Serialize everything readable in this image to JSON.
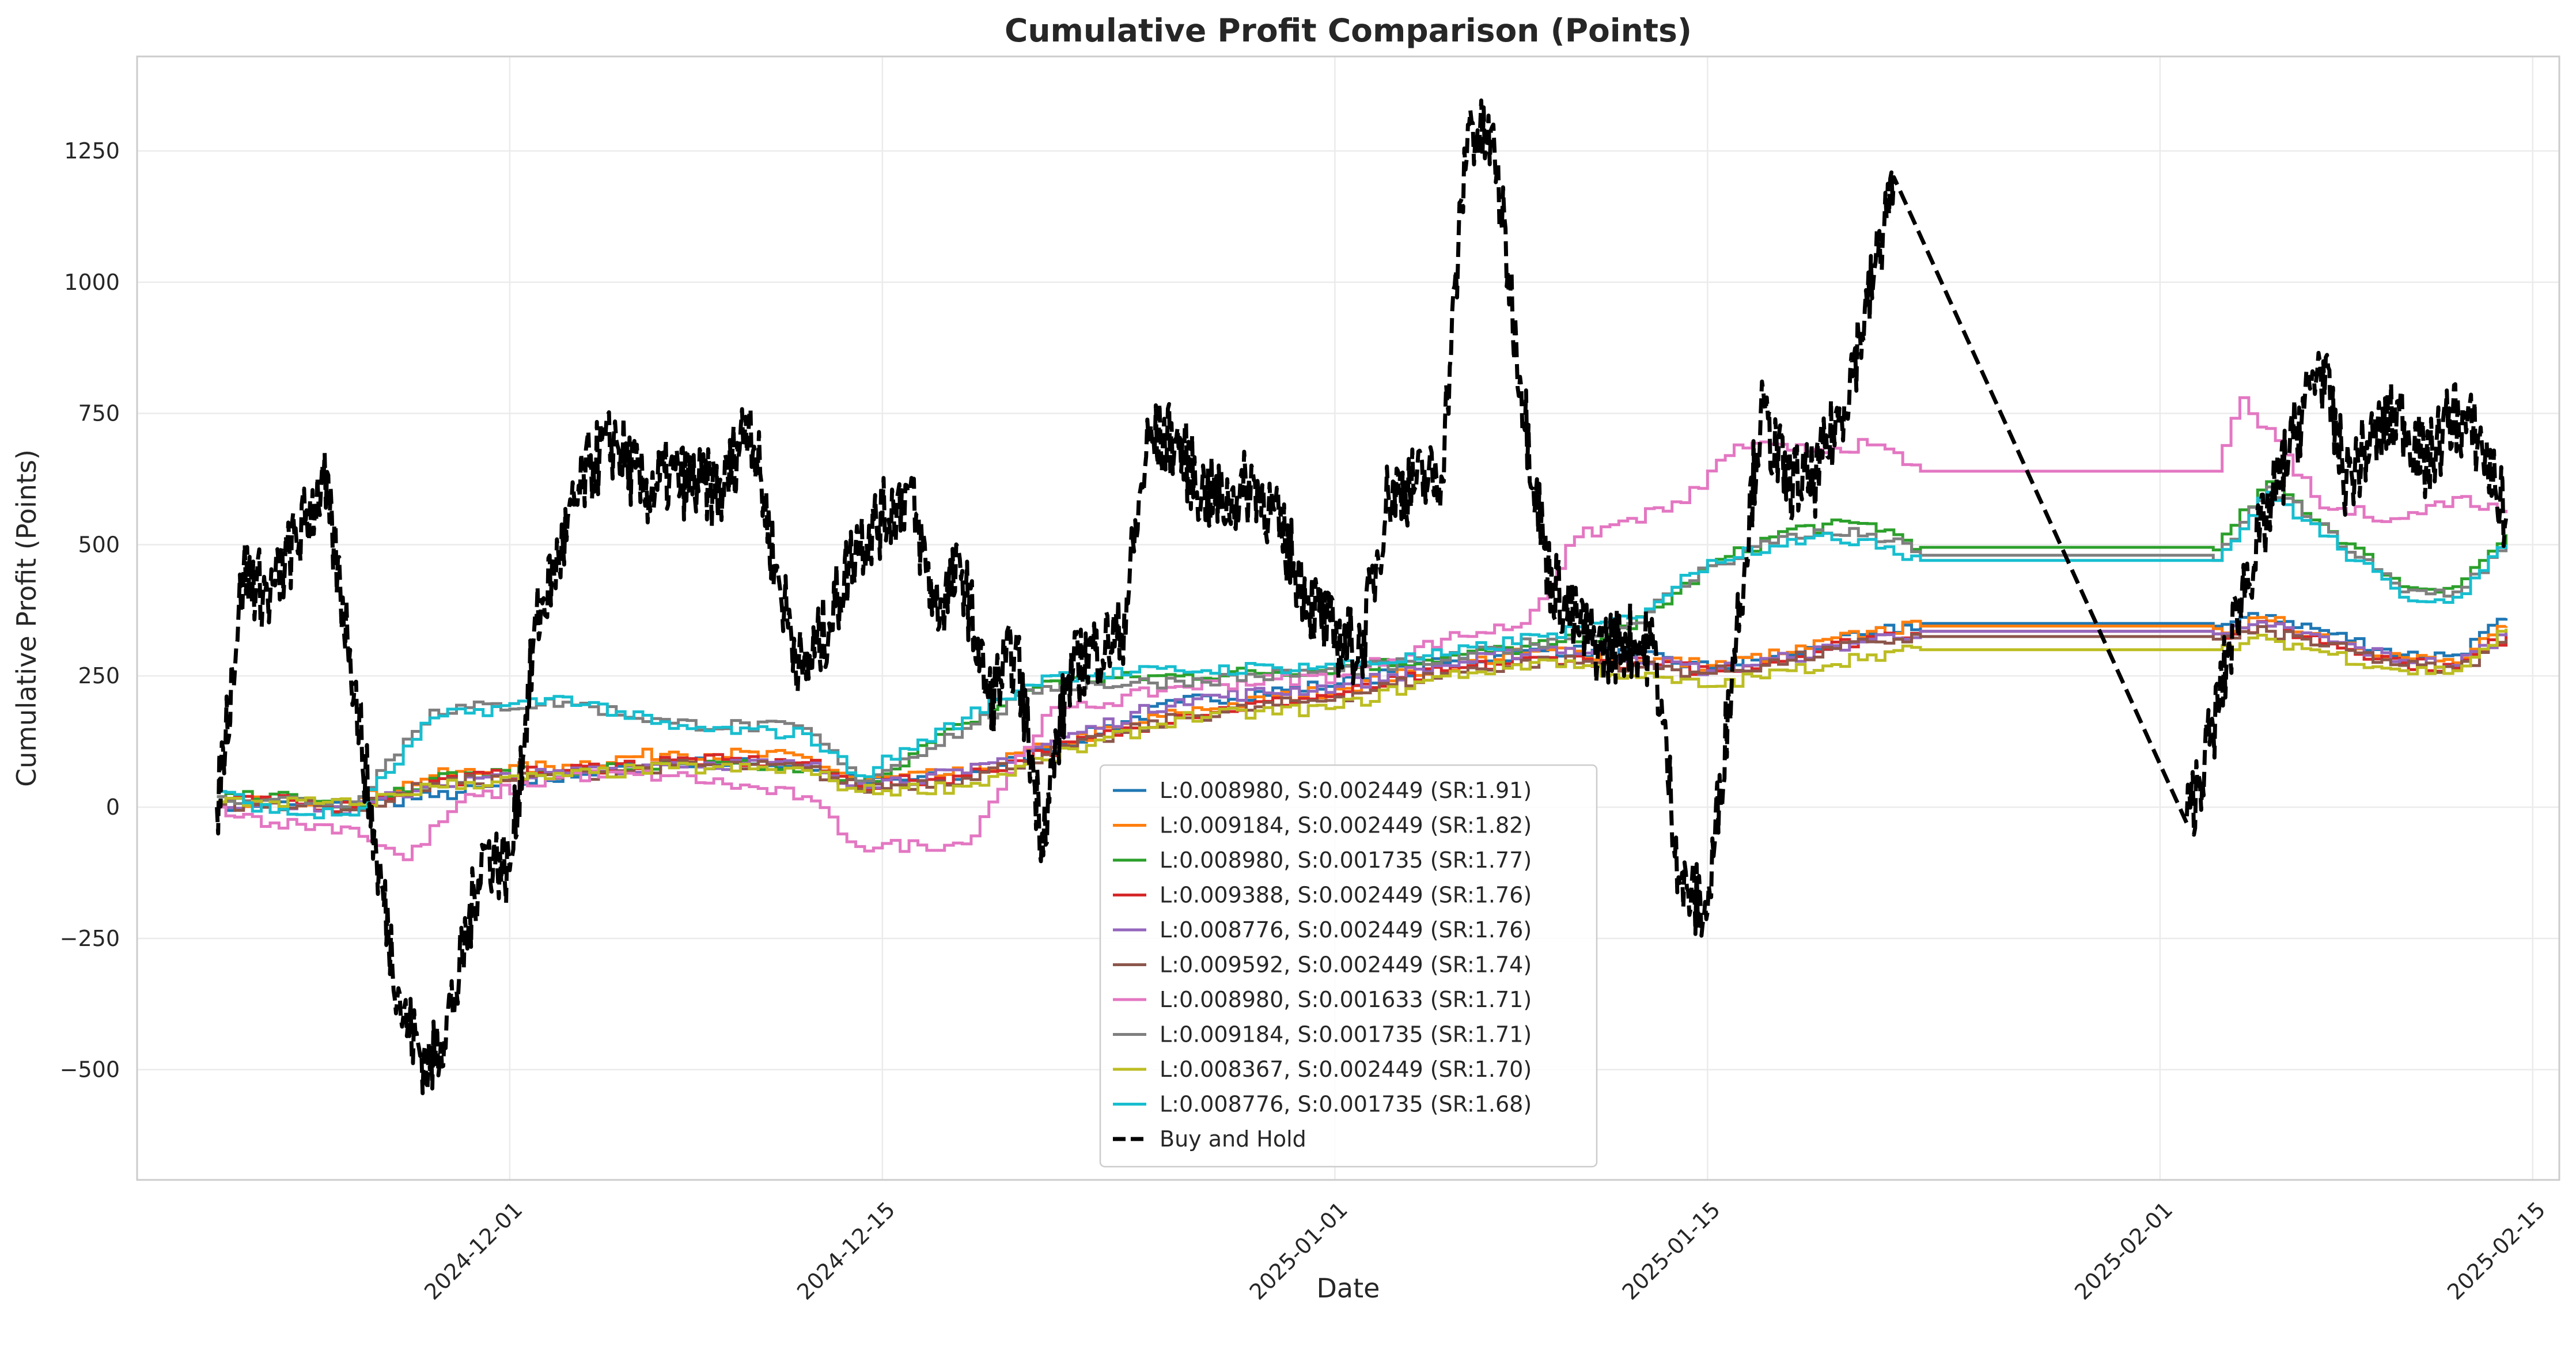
{
  "chart_data": {
    "type": "line",
    "title": "Cumulative Profit Comparison (Points)",
    "xlabel": "Date",
    "ylabel": "Cumulative Profit (Points)",
    "xlim": [
      "2024-11-17",
      "2025-02-16"
    ],
    "ylim": [
      -710,
      1430
    ],
    "x_ticks": [
      "2024-12-01",
      "2024-12-15",
      "2025-01-01",
      "2025-01-15",
      "2025-02-01",
      "2025-02-15"
    ],
    "y_ticks": [
      -500,
      -250,
      0,
      250,
      500,
      750,
      1000,
      1250
    ],
    "y_tick_labels": [
      "−500",
      "−250",
      "0",
      "250",
      "500",
      "750",
      "1000",
      "1250"
    ],
    "grid": true,
    "legend_position": "lower-center",
    "series": [
      {
        "name": "L:0.008980, S:0.002449 (SR:1.91)",
        "color": "#1f77b4",
        "style": "solid",
        "x": [
          "2024-11-20",
          "2024-11-22",
          "2024-11-25",
          "2024-11-28",
          "2024-12-03",
          "2024-12-07",
          "2024-12-12",
          "2024-12-14",
          "2024-12-18",
          "2024-12-21",
          "2024-12-26",
          "2025-01-01",
          "2025-01-05",
          "2025-01-09",
          "2025-01-12",
          "2025-01-15",
          "2025-01-18",
          "2025-01-21",
          "2025-01-23",
          "2025-02-03",
          "2025-02-05",
          "2025-02-10",
          "2025-02-12",
          "2025-02-14"
        ],
        "y": [
          5,
          10,
          5,
          20,
          60,
          85,
          80,
          45,
          60,
          110,
          200,
          235,
          275,
          300,
          290,
          265,
          290,
          330,
          350,
          345,
          365,
          290,
          290,
          360
        ]
      },
      {
        "name": "L:0.009184, S:0.002449 (SR:1.82)",
        "color": "#ff7f0e",
        "style": "solid",
        "x": [
          "2024-11-20",
          "2024-11-22",
          "2024-11-25",
          "2024-11-28",
          "2024-12-03",
          "2024-12-07",
          "2024-12-12",
          "2024-12-14",
          "2024-12-18",
          "2024-12-21",
          "2024-12-26",
          "2025-01-01",
          "2025-01-05",
          "2025-01-09",
          "2025-01-12",
          "2025-01-15",
          "2025-01-18",
          "2025-01-21",
          "2025-01-23",
          "2025-02-03",
          "2025-02-05",
          "2025-02-10",
          "2025-02-12",
          "2025-02-14"
        ],
        "y": [
          10,
          15,
          10,
          60,
          80,
          105,
          95,
          50,
          65,
          115,
          180,
          225,
          270,
          300,
          285,
          270,
          295,
          335,
          345,
          340,
          355,
          285,
          275,
          345
        ]
      },
      {
        "name": "L:0.008980, S:0.001735 (SR:1.77)",
        "color": "#2ca02c",
        "style": "solid",
        "x": [
          "2024-11-20",
          "2024-11-22",
          "2024-11-25",
          "2024-11-28",
          "2024-12-03",
          "2024-12-07",
          "2024-12-12",
          "2024-12-14",
          "2024-12-18",
          "2024-12-21",
          "2024-12-26",
          "2025-01-01",
          "2025-01-05",
          "2025-01-09",
          "2025-01-12",
          "2025-01-15",
          "2025-01-18",
          "2025-01-21",
          "2025-01-23",
          "2025-02-03",
          "2025-02-05",
          "2025-02-10",
          "2025-02-12",
          "2025-02-14"
        ],
        "y": [
          20,
          25,
          5,
          55,
          70,
          80,
          75,
          40,
          160,
          240,
          250,
          265,
          285,
          310,
          340,
          460,
          530,
          540,
          495,
          490,
          620,
          420,
          420,
          520
        ]
      },
      {
        "name": "L:0.009388, S:0.002449 (SR:1.76)",
        "color": "#d62728",
        "style": "solid",
        "x": [
          "2024-11-20",
          "2024-11-22",
          "2024-11-25",
          "2024-11-28",
          "2024-12-03",
          "2024-12-07",
          "2024-12-12",
          "2024-12-14",
          "2024-12-18",
          "2024-12-21",
          "2024-12-26",
          "2025-01-01",
          "2025-01-05",
          "2025-01-09",
          "2025-01-12",
          "2025-01-15",
          "2025-01-18",
          "2025-01-21",
          "2025-01-23",
          "2025-02-03",
          "2025-02-05",
          "2025-02-10",
          "2025-02-12",
          "2025-02-14"
        ],
        "y": [
          8,
          12,
          0,
          50,
          70,
          90,
          85,
          40,
          60,
          105,
          175,
          215,
          260,
          285,
          275,
          260,
          285,
          325,
          335,
          330,
          345,
          275,
          265,
          330
        ]
      },
      {
        "name": "L:0.008776, S:0.002449 (SR:1.76)",
        "color": "#9467bd",
        "style": "solid",
        "x": [
          "2024-11-20",
          "2024-11-22",
          "2024-11-25",
          "2024-11-28",
          "2024-12-03",
          "2024-12-07",
          "2024-12-12",
          "2024-12-14",
          "2024-12-18",
          "2024-12-21",
          "2024-12-26",
          "2025-01-01",
          "2025-01-05",
          "2025-01-09",
          "2025-01-12",
          "2025-01-15",
          "2025-01-18",
          "2025-01-21",
          "2025-01-23",
          "2025-02-03",
          "2025-02-05",
          "2025-02-10",
          "2025-02-12",
          "2025-02-14"
        ],
        "y": [
          5,
          8,
          -5,
          45,
          65,
          85,
          80,
          45,
          65,
          120,
          205,
          230,
          270,
          305,
          285,
          260,
          285,
          320,
          335,
          330,
          345,
          280,
          270,
          335
        ]
      },
      {
        "name": "L:0.009592, S:0.002449 (SR:1.74)",
        "color": "#8c564b",
        "style": "solid",
        "x": [
          "2024-11-20",
          "2024-11-22",
          "2024-11-25",
          "2024-11-28",
          "2024-12-03",
          "2024-12-07",
          "2024-12-12",
          "2024-12-14",
          "2024-12-18",
          "2024-12-21",
          "2024-12-26",
          "2025-01-01",
          "2025-01-05",
          "2025-01-09",
          "2025-01-12",
          "2025-01-15",
          "2025-01-18",
          "2025-01-21",
          "2025-01-23",
          "2025-02-03",
          "2025-02-05",
          "2025-02-10",
          "2025-02-12",
          "2025-02-14"
        ],
        "y": [
          5,
          8,
          -5,
          45,
          60,
          80,
          75,
          35,
          55,
          100,
          170,
          210,
          255,
          280,
          270,
          255,
          280,
          315,
          325,
          320,
          335,
          270,
          260,
          320
        ]
      },
      {
        "name": "L:0.008980, S:0.001633 (SR:1.71)",
        "color": "#e377c2",
        "style": "solid",
        "x": [
          "2024-11-20",
          "2024-11-22",
          "2024-11-25",
          "2024-11-27",
          "2024-11-29",
          "2024-12-03",
          "2024-12-07",
          "2024-12-12",
          "2024-12-14",
          "2024-12-18",
          "2024-12-21",
          "2024-12-26",
          "2025-01-01",
          "2025-01-05",
          "2025-01-08",
          "2025-01-10",
          "2025-01-14",
          "2025-01-16",
          "2025-01-18",
          "2025-01-21",
          "2025-01-23",
          "2025-02-03",
          "2025-02-04",
          "2025-02-07",
          "2025-02-10",
          "2025-02-12",
          "2025-02-14"
        ],
        "y": [
          0,
          -30,
          -40,
          -100,
          10,
          60,
          60,
          20,
          -75,
          -70,
          175,
          230,
          250,
          320,
          350,
          515,
          580,
          690,
          680,
          690,
          640,
          640,
          780,
          570,
          550,
          590,
          560
        ]
      },
      {
        "name": "L:0.009184, S:0.001735 (SR:1.71)",
        "color": "#7f7f7f",
        "style": "solid",
        "x": [
          "2024-11-20",
          "2024-11-22",
          "2024-11-25",
          "2024-11-28",
          "2024-12-03",
          "2024-12-07",
          "2024-12-12",
          "2024-12-14",
          "2024-12-18",
          "2024-12-21",
          "2024-12-26",
          "2025-01-01",
          "2025-01-05",
          "2025-01-09",
          "2025-01-12",
          "2025-01-15",
          "2025-01-18",
          "2025-01-21",
          "2025-01-23",
          "2025-02-03",
          "2025-02-05",
          "2025-02-10",
          "2025-02-12",
          "2025-02-14"
        ],
        "y": [
          20,
          15,
          10,
          185,
          200,
          160,
          150,
          50,
          150,
          230,
          240,
          260,
          280,
          320,
          350,
          460,
          520,
          520,
          480,
          470,
          610,
          410,
          410,
          500
        ]
      },
      {
        "name": "L:0.008367, S:0.002449 (SR:1.70)",
        "color": "#bcbd22",
        "style": "solid",
        "x": [
          "2024-11-20",
          "2024-11-22",
          "2024-11-25",
          "2024-11-28",
          "2024-12-03",
          "2024-12-07",
          "2024-12-12",
          "2024-12-14",
          "2024-12-18",
          "2024-12-21",
          "2024-12-26",
          "2025-01-01",
          "2025-01-05",
          "2025-01-09",
          "2025-01-12",
          "2025-01-15",
          "2025-01-18",
          "2025-01-21",
          "2025-01-23",
          "2025-02-03",
          "2025-02-05",
          "2025-02-10",
          "2025-02-12",
          "2025-02-14"
        ],
        "y": [
          10,
          10,
          5,
          40,
          60,
          75,
          70,
          30,
          40,
          90,
          170,
          190,
          250,
          280,
          250,
          230,
          260,
          290,
          300,
          300,
          320,
          260,
          260,
          340
        ]
      },
      {
        "name": "L:0.008776, S:0.001735 (SR:1.68)",
        "color": "#17becf",
        "style": "solid",
        "x": [
          "2024-11-20",
          "2024-11-22",
          "2024-11-25",
          "2024-11-28",
          "2024-12-03",
          "2024-12-07",
          "2024-12-12",
          "2024-12-14",
          "2024-12-18",
          "2024-12-21",
          "2024-12-26",
          "2025-01-01",
          "2025-01-05",
          "2025-01-09",
          "2025-01-12",
          "2025-01-15",
          "2025-01-18",
          "2025-01-21",
          "2025-01-23",
          "2025-02-03",
          "2025-02-05",
          "2025-02-10",
          "2025-02-12",
          "2025-02-14"
        ],
        "y": [
          30,
          -10,
          -15,
          170,
          210,
          150,
          140,
          60,
          170,
          250,
          260,
          270,
          290,
          330,
          360,
          470,
          510,
          510,
          470,
          470,
          600,
          400,
          400,
          500
        ]
      },
      {
        "name": "Buy and Hold",
        "color": "#000000",
        "style": "dashed",
        "x": [
          "2024-11-20",
          "2024-11-21",
          "2024-11-22",
          "2024-11-24",
          "2024-11-25",
          "2024-11-26",
          "2024-11-27",
          "2024-11-28",
          "2024-11-29",
          "2024-11-30",
          "2024-12-01",
          "2024-12-02",
          "2024-12-03",
          "2024-12-04",
          "2024-12-05",
          "2024-12-06",
          "2024-12-07",
          "2024-12-09",
          "2024-12-10",
          "2024-12-11",
          "2024-12-12",
          "2024-12-13",
          "2024-12-14",
          "2024-12-15",
          "2024-12-16",
          "2024-12-17",
          "2024-12-18",
          "2024-12-19",
          "2024-12-20",
          "2024-12-21",
          "2024-12-22",
          "2024-12-23",
          "2024-12-24",
          "2024-12-25",
          "2024-12-26",
          "2024-12-27",
          "2024-12-28",
          "2024-12-29",
          "2024-12-30",
          "2024-12-31",
          "2025-01-01",
          "2025-01-02",
          "2025-01-03",
          "2025-01-05",
          "2025-01-06",
          "2025-01-07",
          "2025-01-08",
          "2025-01-09",
          "2025-01-10",
          "2025-01-11",
          "2025-01-12",
          "2025-01-13",
          "2025-01-14",
          "2025-01-15",
          "2025-01-16",
          "2025-01-17",
          "2025-01-18",
          "2025-01-19",
          "2025-01-20",
          "2025-01-21",
          "2025-01-22",
          "2025-02-02",
          "2025-02-03",
          "2025-02-04",
          "2025-02-05",
          "2025-02-06",
          "2025-02-07",
          "2025-02-08",
          "2025-02-09",
          "2025-02-10",
          "2025-02-11",
          "2025-02-12",
          "2025-02-13",
          "2025-02-14"
        ],
        "y": [
          0,
          450,
          400,
          620,
          300,
          -100,
          -400,
          -500,
          -350,
          -80,
          -120,
          350,
          500,
          650,
          700,
          600,
          630,
          600,
          750,
          450,
          250,
          350,
          500,
          550,
          600,
          380,
          450,
          200,
          300,
          -50,
          250,
          300,
          330,
          700,
          700,
          600,
          580,
          620,
          520,
          400,
          320,
          300,
          600,
          630,
          1300,
          1250,
          800,
          450,
          350,
          300,
          320,
          300,
          -150,
          -200,
          300,
          750,
          620,
          620,
          750,
          950,
          1200,
          -30,
          150,
          400,
          550,
          700,
          850,
          620,
          700,
          750,
          650,
          750,
          700,
          550
        ]
      }
    ]
  }
}
